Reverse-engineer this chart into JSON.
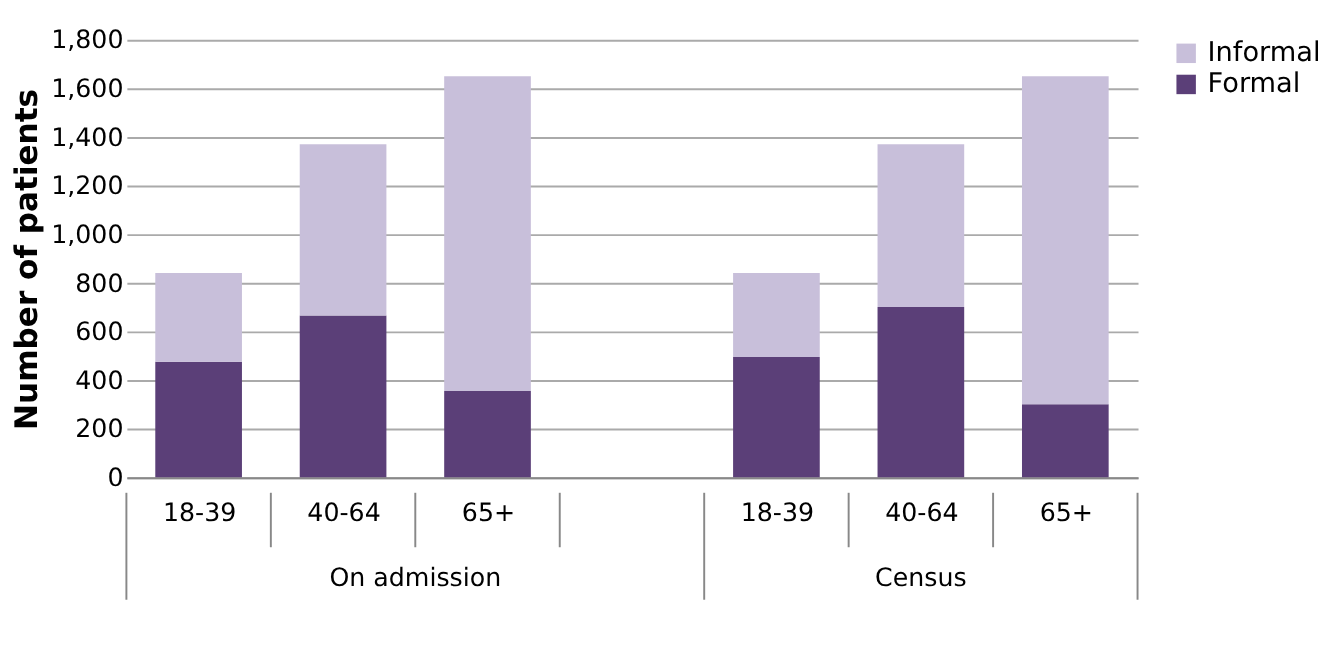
{
  "chart_data": {
    "type": "bar",
    "stacked": true,
    "ylabel": "Number of patients",
    "categories": [
      "18-39",
      "40-64",
      "65+",
      null,
      "18-39",
      "40-64",
      "65+"
    ],
    "series": [
      {
        "name": "Formal",
        "color": "#5b3f78",
        "values": [
          475,
          665,
          355,
          null,
          495,
          700,
          300
        ]
      },
      {
        "name": "Informal",
        "color": "#c8bfda",
        "values": [
          365,
          705,
          1295,
          null,
          345,
          670,
          1350
        ]
      }
    ],
    "ylim": [
      0,
      1800
    ],
    "yticks": [
      {
        "value": 0,
        "label": "0"
      },
      {
        "value": 200,
        "label": "200"
      },
      {
        "value": 400,
        "label": "400"
      },
      {
        "value": 600,
        "label": "600"
      },
      {
        "value": 800,
        "label": "800"
      },
      {
        "value": 1000,
        "label": "1,000"
      },
      {
        "value": 1200,
        "label": "1,200"
      },
      {
        "value": 1400,
        "label": "1,400"
      },
      {
        "value": 1600,
        "label": "1,600"
      },
      {
        "value": 1800,
        "label": "1,800"
      }
    ],
    "grid": "y",
    "legend": "right",
    "annotations": [
      "On admission",
      "Census"
    ]
  }
}
